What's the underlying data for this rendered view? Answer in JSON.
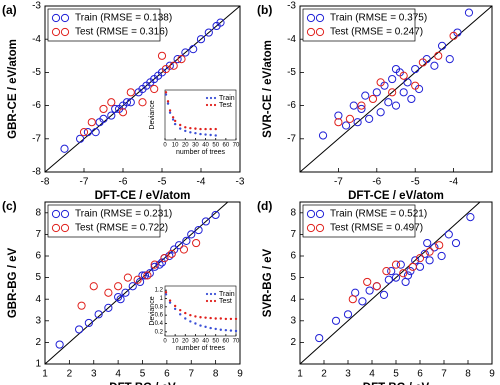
{
  "chart_data": [
    {
      "type": "scatter",
      "label": "(a)",
      "xlabel": "DFT-CE / eV/atom",
      "ylabel": "GBR-CE / eV/atom",
      "xlim": [
        -8,
        -3
      ],
      "ylim": [
        -8,
        -3
      ],
      "xticks": [
        -8,
        -7,
        -6,
        -5,
        -4,
        -3
      ],
      "yticks": [
        -8,
        -7,
        -6,
        -5,
        -4,
        -3
      ],
      "diagonal": true,
      "legend": "upper left",
      "series": [
        {
          "name": "Train (RMSE = 0.138)",
          "color": "#1f1fd6",
          "x": [
            -7.5,
            -7.1,
            -6.9,
            -6.7,
            -6.5,
            -6.3,
            -6.2,
            -6.0,
            -5.9,
            -5.8,
            -5.6,
            -5.5,
            -5.4,
            -5.2,
            -5.1,
            -5.0,
            -4.8,
            -4.6,
            -4.4,
            -4.2,
            -4.0,
            -3.8,
            -3.6,
            -3.5,
            -6.6,
            -6.1,
            -5.3
          ],
          "y": [
            -7.3,
            -7.0,
            -6.8,
            -6.8,
            -6.4,
            -6.3,
            -6.1,
            -6.0,
            -5.9,
            -5.9,
            -5.6,
            -5.5,
            -5.4,
            -5.2,
            -5.1,
            -5.0,
            -4.8,
            -4.6,
            -4.4,
            -4.3,
            -4.0,
            -3.8,
            -3.6,
            -3.5,
            -6.5,
            -6.1,
            -5.3
          ]
        },
        {
          "name": "Test (RMSE = 0.316)",
          "color": "#e0201c",
          "x": [
            -7.0,
            -6.8,
            -6.5,
            -6.3,
            -6.0,
            -5.8,
            -5.5,
            -5.2,
            -5.0,
            -4.9,
            -4.7,
            -4.5
          ],
          "y": [
            -6.8,
            -6.5,
            -6.1,
            -5.9,
            -6.2,
            -5.6,
            -5.9,
            -5.5,
            -4.5,
            -4.9,
            -4.8,
            -4.6
          ]
        }
      ]
    },
    {
      "type": "scatter",
      "label": "(b)",
      "xlabel": "DFT-CE / eV/atom",
      "ylabel": "SVR-CE / eV/atom",
      "xlim": [
        -8,
        -3
      ],
      "ylim": [
        -8,
        -3
      ],
      "xticks": [
        -7,
        -6,
        -5,
        -4
      ],
      "yticks": [
        -7,
        -6,
        -5,
        -4,
        -3
      ],
      "diagonal": true,
      "legend": "upper left",
      "series": [
        {
          "name": "Train (RMSE = 0.375)",
          "color": "#1f1fd6",
          "x": [
            -7.4,
            -7.0,
            -6.8,
            -6.6,
            -6.5,
            -6.3,
            -6.2,
            -6.0,
            -5.9,
            -5.8,
            -5.7,
            -5.6,
            -5.5,
            -5.4,
            -5.3,
            -5.2,
            -5.0,
            -4.9,
            -4.7,
            -4.5,
            -4.3,
            -4.1,
            -3.9,
            -3.6,
            -6.4,
            -5.5,
            -5.1
          ],
          "y": [
            -6.9,
            -6.3,
            -6.6,
            -6.0,
            -6.5,
            -5.7,
            -6.4,
            -5.6,
            -6.2,
            -5.4,
            -5.9,
            -5.2,
            -6.0,
            -5.0,
            -5.6,
            -5.3,
            -4.9,
            -5.5,
            -4.6,
            -4.8,
            -4.2,
            -4.6,
            -3.8,
            -3.2,
            -6.1,
            -4.9,
            -5.8
          ]
        },
        {
          "name": "Test (RMSE = 0.247)",
          "color": "#e0201c",
          "x": [
            -7.0,
            -6.7,
            -6.4,
            -6.1,
            -5.9,
            -5.6,
            -5.3,
            -5.0,
            -4.8,
            -4.4,
            -4.0
          ],
          "y": [
            -6.5,
            -6.4,
            -6.0,
            -5.8,
            -5.3,
            -5.6,
            -5.1,
            -5.4,
            -4.7,
            -4.5,
            -3.9
          ]
        }
      ]
    },
    {
      "type": "scatter",
      "label": "(c)",
      "xlabel": "DFT-BG / eV",
      "ylabel": "GBR-BG / eV",
      "xlim": [
        1,
        9
      ],
      "ylim": [
        1,
        8.5
      ],
      "xticks": [
        1,
        2,
        3,
        4,
        5,
        6,
        7,
        8,
        9
      ],
      "yticks": [
        1,
        2,
        3,
        4,
        5,
        6,
        7,
        8
      ],
      "diagonal": true,
      "legend": "upper left",
      "series": [
        {
          "name": "Train (RMSE = 0.231)",
          "color": "#1f1fd6",
          "x": [
            1.6,
            2.4,
            2.8,
            3.2,
            3.6,
            4.0,
            4.3,
            4.6,
            4.9,
            5.1,
            5.3,
            5.5,
            5.7,
            5.9,
            6.1,
            6.3,
            6.5,
            6.8,
            7.0,
            7.3,
            7.6,
            8.0,
            4.1,
            5.0,
            5.8
          ],
          "y": [
            1.9,
            2.6,
            2.9,
            3.3,
            3.6,
            4.1,
            4.3,
            4.6,
            4.8,
            5.1,
            5.2,
            5.5,
            5.6,
            5.9,
            6.0,
            6.3,
            6.5,
            6.7,
            7.0,
            7.2,
            7.6,
            7.9,
            4.0,
            5.1,
            5.7
          ]
        },
        {
          "name": "Test (RMSE = 0.722)",
          "color": "#e0201c",
          "x": [
            2.5,
            3.0,
            3.6,
            4.0,
            4.4,
            4.8,
            5.2,
            5.5,
            5.9,
            6.2,
            6.7,
            7.2
          ],
          "y": [
            3.7,
            4.6,
            4.3,
            4.6,
            5.0,
            4.9,
            5.1,
            5.6,
            5.9,
            6.1,
            6.3,
            6.6
          ]
        }
      ]
    },
    {
      "type": "scatter",
      "label": "(d)",
      "xlabel": "DFT-BG / eV",
      "ylabel": "SVR-BG / eV",
      "xlim": [
        1,
        9
      ],
      "ylim": [
        1,
        8.5
      ],
      "xticks": [
        1,
        2,
        3,
        4,
        5,
        6,
        7,
        8,
        9
      ],
      "yticks": [
        2,
        3,
        4,
        5,
        6,
        7,
        8
      ],
      "diagonal": true,
      "legend": "upper left",
      "series": [
        {
          "name": "Train (RMSE = 0.521)",
          "color": "#1f1fd6",
          "x": [
            1.8,
            2.5,
            3.0,
            3.3,
            3.6,
            3.9,
            4.2,
            4.5,
            4.8,
            5.0,
            5.2,
            5.4,
            5.6,
            5.8,
            6.0,
            6.2,
            6.4,
            6.6,
            6.9,
            7.2,
            7.5,
            8.1,
            4.7,
            5.5,
            6.3
          ],
          "y": [
            2.2,
            3.0,
            3.3,
            4.3,
            3.9,
            4.4,
            4.6,
            4.2,
            5.3,
            5.0,
            5.6,
            4.8,
            5.3,
            5.8,
            5.5,
            6.1,
            5.8,
            6.4,
            6.0,
            7.0,
            6.6,
            7.8,
            4.9,
            5.1,
            6.6
          ]
        },
        {
          "name": "Test (RMSE = 0.497)",
          "color": "#e0201c",
          "x": [
            3.2,
            3.8,
            4.2,
            4.6,
            5.0,
            5.3,
            5.7,
            6.0,
            6.4,
            6.8
          ],
          "y": [
            4.0,
            4.8,
            4.6,
            5.3,
            5.6,
            5.2,
            5.5,
            5.9,
            6.2,
            6.5
          ]
        }
      ]
    },
    {
      "type": "dots",
      "xlabel": "number of trees",
      "ylabel": "Deviance",
      "xlim": [
        0,
        70
      ],
      "ylim": [
        0,
        1.1
      ],
      "xticks": [
        0,
        10,
        20,
        30,
        40,
        50,
        60,
        70
      ],
      "yticks": [],
      "legend": "upper right",
      "series": [
        {
          "name": "Train",
          "color": "#3a4fd6",
          "x": [
            1,
            3,
            5,
            8,
            10,
            15,
            20,
            25,
            30,
            35,
            40,
            45,
            50
          ],
          "y": [
            1.0,
            0.8,
            0.6,
            0.45,
            0.35,
            0.25,
            0.2,
            0.17,
            0.15,
            0.13,
            0.12,
            0.11,
            0.1
          ]
        },
        {
          "name": "Test",
          "color": "#e0201c",
          "x": [
            1,
            3,
            5,
            8,
            10,
            15,
            20,
            25,
            30,
            35,
            40,
            45,
            50
          ],
          "y": [
            1.05,
            0.85,
            0.65,
            0.5,
            0.42,
            0.33,
            0.28,
            0.26,
            0.25,
            0.24,
            0.24,
            0.24,
            0.24
          ]
        }
      ]
    },
    {
      "type": "dots",
      "xlabel": "number of trees",
      "ylabel": "Deviance",
      "xlim": [
        0,
        70
      ],
      "ylim": [
        0.1,
        1.3
      ],
      "xticks": [
        0,
        10,
        20,
        30,
        40,
        50,
        60,
        70
      ],
      "yticks": [
        0.2,
        0.4,
        0.6,
        0.8,
        1,
        1.2
      ],
      "legend": "upper right",
      "series": [
        {
          "name": "Train",
          "color": "#3a4fd6",
          "x": [
            1,
            5,
            10,
            15,
            20,
            25,
            30,
            35,
            40,
            45,
            50,
            55,
            60,
            65,
            70
          ],
          "y": [
            1.1,
            0.9,
            0.75,
            0.62,
            0.52,
            0.45,
            0.4,
            0.35,
            0.32,
            0.29,
            0.27,
            0.25,
            0.24,
            0.23,
            0.22
          ]
        },
        {
          "name": "Test",
          "color": "#e0201c",
          "x": [
            1,
            5,
            10,
            15,
            20,
            25,
            30,
            35,
            40,
            45,
            50,
            55,
            60,
            65,
            70
          ],
          "y": [
            1.15,
            0.95,
            0.82,
            0.72,
            0.65,
            0.6,
            0.57,
            0.55,
            0.54,
            0.53,
            0.52,
            0.52,
            0.51,
            0.51,
            0.51
          ]
        }
      ]
    }
  ]
}
